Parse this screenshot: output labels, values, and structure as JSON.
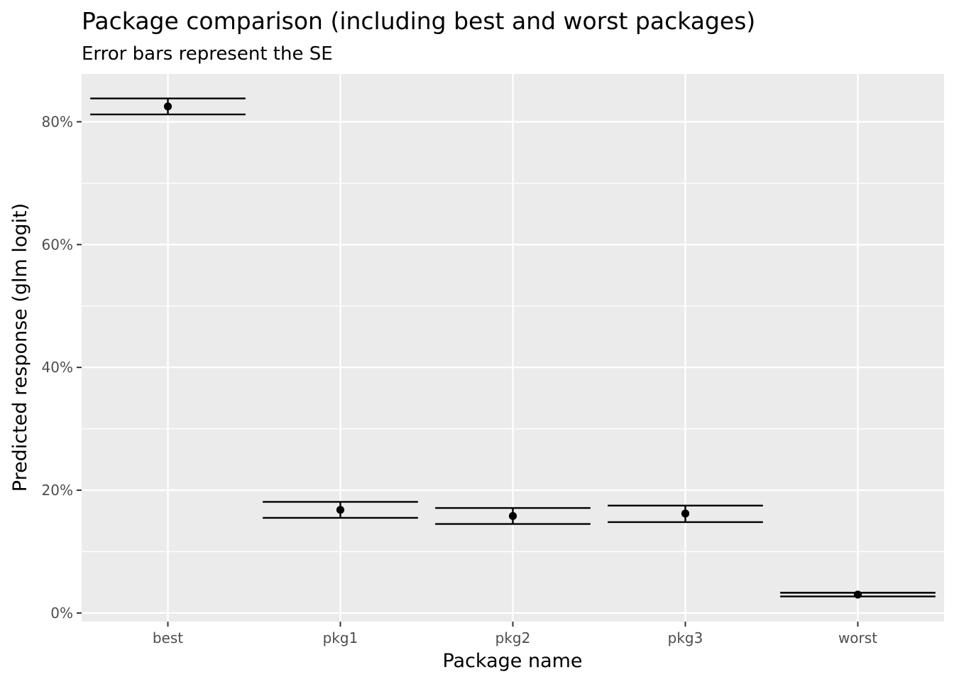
{
  "chart_data": {
    "type": "errorbar",
    "title": "Package comparison (including best and worst packages)",
    "subtitle": "Error bars represent the SE",
    "xlabel": "Package name",
    "ylabel": "Predicted response (glm logit)",
    "categories": [
      "best",
      "pkg1",
      "pkg2",
      "pkg3",
      "worst"
    ],
    "values": [
      0.825,
      0.168,
      0.158,
      0.162,
      0.03
    ],
    "lower": [
      0.812,
      0.155,
      0.145,
      0.148,
      0.027
    ],
    "upper": [
      0.838,
      0.181,
      0.171,
      0.175,
      0.033
    ],
    "ylim": [
      -0.014,
      0.878
    ],
    "yticks": [
      0,
      0.2,
      0.4,
      0.6,
      0.8
    ],
    "ytick_labels": [
      "0%",
      "20%",
      "40%",
      "60%",
      "80%"
    ],
    "grid": true,
    "panel_color": "#ebebeb",
    "grid_color": "#ffffff",
    "mark_color": "#000000"
  }
}
